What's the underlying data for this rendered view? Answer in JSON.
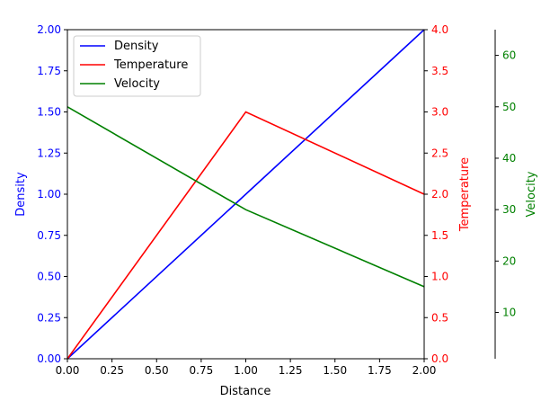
{
  "chart_data": {
    "type": "line",
    "x": [
      0,
      1,
      2
    ],
    "xlabel": "Distance",
    "xlim": [
      0,
      2
    ],
    "xticks": [
      0,
      0.25,
      0.5,
      0.75,
      1.0,
      1.25,
      1.5,
      1.75,
      2.0
    ],
    "xtick_labels": [
      "0.00",
      "0.25",
      "0.50",
      "0.75",
      "1.00",
      "1.25",
      "1.50",
      "1.75",
      "2.00"
    ],
    "legend_position": "top-left",
    "grid": false,
    "series": [
      {
        "name": "Density",
        "axis": "left",
        "color": "#0000ff",
        "values": [
          0,
          1,
          2
        ],
        "ylabel": "Density",
        "ylim": [
          0,
          2
        ],
        "ticks": [
          0,
          0.25,
          0.5,
          0.75,
          1.0,
          1.25,
          1.5,
          1.75,
          2.0
        ],
        "tick_labels": [
          "0.00",
          "0.25",
          "0.50",
          "0.75",
          "1.00",
          "1.25",
          "1.50",
          "1.75",
          "2.00"
        ]
      },
      {
        "name": "Temperature",
        "axis": "right",
        "color": "#ff0000",
        "values": [
          0,
          3,
          2
        ],
        "ylabel": "Temperature",
        "ylim": [
          0,
          4
        ],
        "ticks": [
          0,
          0.5,
          1.0,
          1.5,
          2.0,
          2.5,
          3.0,
          3.5,
          4.0
        ],
        "tick_labels": [
          "0.0",
          "0.5",
          "1.0",
          "1.5",
          "2.0",
          "2.5",
          "3.0",
          "3.5",
          "4.0"
        ]
      },
      {
        "name": "Velocity",
        "axis": "right-offset",
        "color": "#008000",
        "values": [
          50,
          30,
          15
        ],
        "ylabel": "Velocity",
        "ylim": [
          1,
          65
        ],
        "ticks": [
          10,
          20,
          30,
          40,
          50,
          60
        ],
        "tick_labels": [
          "10",
          "20",
          "30",
          "40",
          "50",
          "60"
        ]
      }
    ]
  }
}
